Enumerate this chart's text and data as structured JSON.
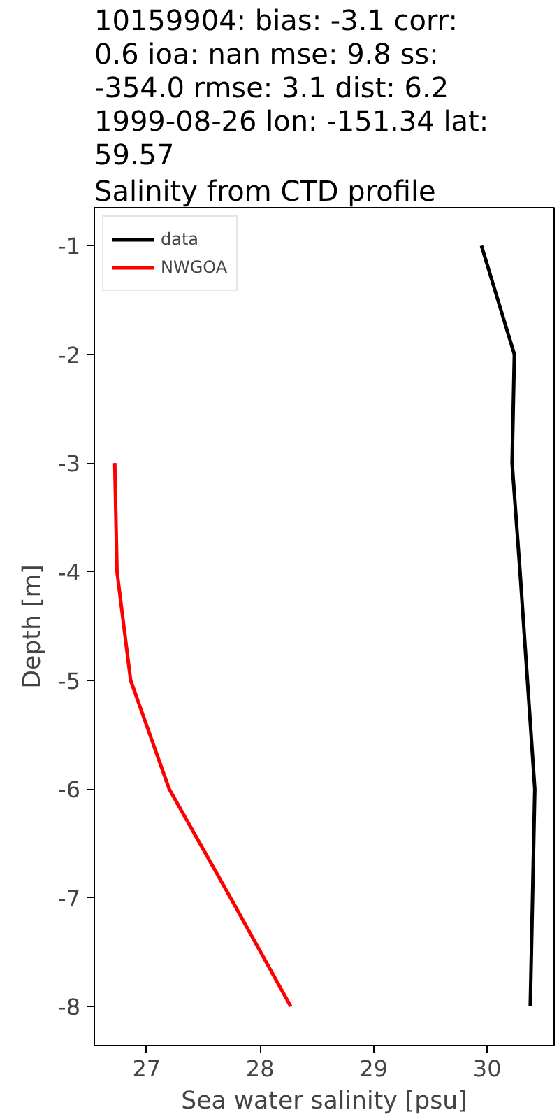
{
  "chart_data": {
    "type": "line",
    "title": "10159904: bias: -3.1  corr:\n0.6  ioa: nan  mse: 9.8  ss:\n-354.0  rmse: 3.1  dist: 6.2\n1999-08-26 lon: -151.34 lat:\n59.57",
    "subtitle": "Salinity from CTD profile",
    "xlabel": "Sea water salinity [psu]",
    "ylabel": "Depth [m]",
    "series": [
      {
        "name": "data",
        "color": "#000000",
        "x": [
          29.95,
          30.24,
          30.22,
          30.29,
          30.42,
          30.38
        ],
        "values": [
          -1,
          -2,
          -3,
          -4,
          -6,
          -8
        ]
      },
      {
        "name": "NWGOA",
        "color": "#ff0000",
        "x": [
          26.72,
          26.74,
          26.86,
          27.2,
          27.74,
          28.27
        ],
        "values": [
          -3,
          -4,
          -5,
          -6,
          -7,
          -8
        ]
      }
    ],
    "xlim": [
      26.54,
      30.59
    ],
    "ylim": [
      -8.36,
      -0.65
    ],
    "xticks": [
      27,
      28,
      29,
      30
    ],
    "yticks": [
      -8,
      -7,
      -6,
      -5,
      -4,
      -3,
      -2,
      -1
    ],
    "grid": false,
    "legend": "top left",
    "marker": "none",
    "line_style": "solid"
  }
}
